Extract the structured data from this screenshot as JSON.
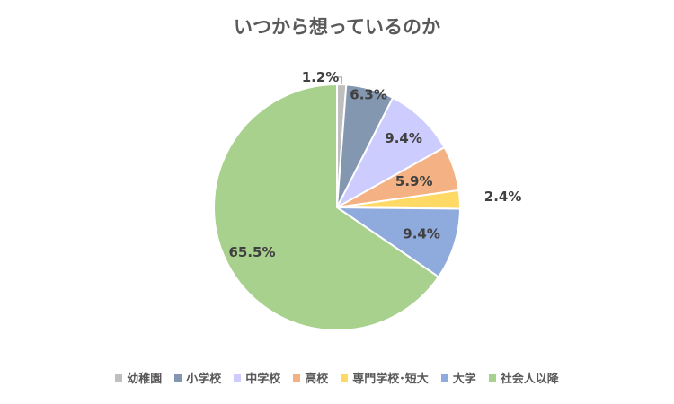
{
  "chart_data": {
    "type": "pie",
    "title": "いつから想っているのか",
    "categories": [
      "幼稚園",
      "小学校",
      "中学校",
      "高校",
      "専門学校･短大",
      "大学",
      "社会人以降"
    ],
    "values": [
      1.2,
      6.3,
      9.4,
      5.9,
      2.4,
      9.4,
      65.5
    ],
    "data_labels": [
      "1.2%",
      "6.3%",
      "9.4%",
      "5.9%",
      "2.4%",
      "9.4%",
      "65.5%"
    ],
    "colors": [
      "#BFBFBF",
      "#8497B0",
      "#CCCCFF",
      "#F4B183",
      "#FFD966",
      "#8FAADC",
      "#A9D18E"
    ],
    "start_angle_deg": 0,
    "direction": "clockwise",
    "legend_position": "bottom"
  }
}
